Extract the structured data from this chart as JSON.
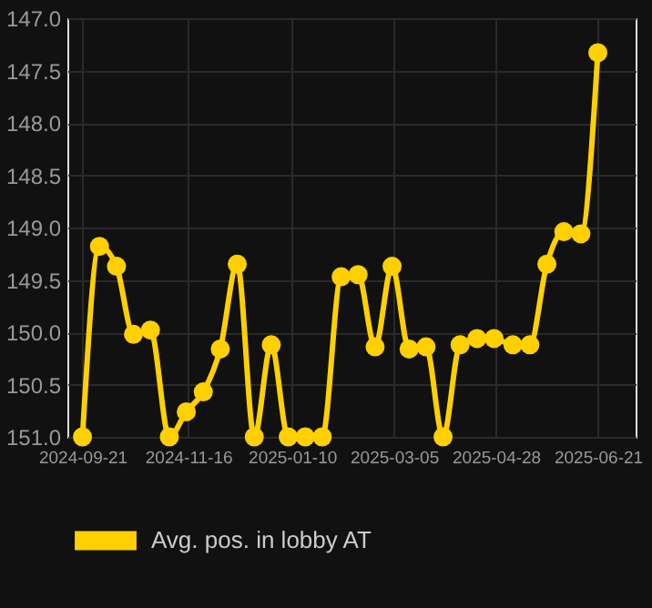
{
  "chart_data": {
    "type": "line",
    "x": [
      "2024-09-21",
      "2024-09-30",
      "2024-10-09",
      "2024-10-18",
      "2024-10-27",
      "2024-11-06",
      "2024-11-15",
      "2024-11-24",
      "2024-12-03",
      "2024-12-12",
      "2024-12-21",
      "2024-12-30",
      "2025-01-08",
      "2025-01-17",
      "2025-01-26",
      "2025-02-05",
      "2025-02-14",
      "2025-02-23",
      "2025-03-04",
      "2025-03-13",
      "2025-03-22",
      "2025-03-31",
      "2025-04-09",
      "2025-04-18",
      "2025-04-27",
      "2025-05-07",
      "2025-05-16",
      "2025-05-25",
      "2025-06-03",
      "2025-06-12",
      "2025-06-21"
    ],
    "series": [
      {
        "name": "Avg. pos. in lobby AT",
        "color": "#ffd000",
        "values": [
          151.0,
          149.18,
          149.37,
          150.02,
          149.98,
          151.0,
          150.76,
          150.57,
          150.16,
          149.35,
          151.0,
          150.12,
          151.0,
          151.0,
          151.0,
          149.47,
          149.45,
          150.14,
          149.37,
          150.16,
          150.14,
          151.0,
          150.12,
          150.06,
          150.06,
          150.12,
          150.12,
          149.35,
          149.04,
          149.06,
          147.33
        ]
      }
    ],
    "ylim": [
      151.0,
      147.0
    ],
    "yticks": [
      {
        "value": 147,
        "label": "147.0"
      },
      147.5,
      {
        "value": 148,
        "label": "148.0"
      },
      148.5,
      {
        "value": 149,
        "label": "149.0"
      },
      149.5,
      {
        "value": 150,
        "label": "150.0"
      },
      150.5,
      {
        "value": 151,
        "label": "151.0"
      }
    ],
    "xlim": [
      "2024-09-13",
      "2025-07-11"
    ],
    "xticks": [
      "2024-09-21",
      "2024-11-16",
      "2025-01-10",
      "2025-03-05",
      "2025-04-28",
      "2025-06-21"
    ],
    "grid": true,
    "legend": "bottom",
    "marker": "circle",
    "line_style": "solid"
  }
}
